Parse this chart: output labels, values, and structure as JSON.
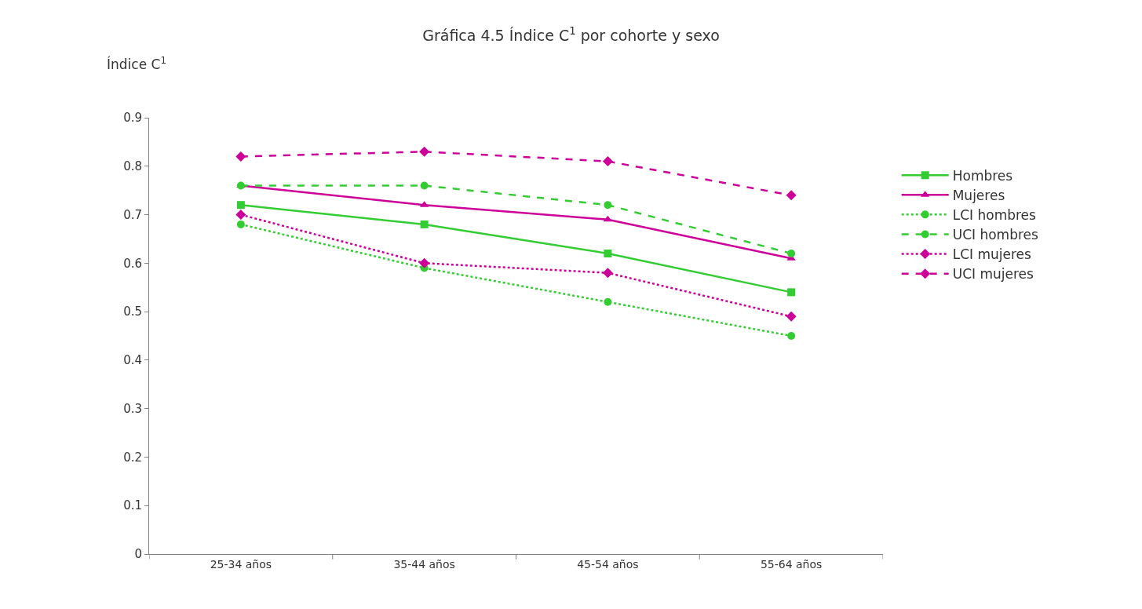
{
  "chart_data": {
    "type": "line",
    "title": "Gráfica 4.5 Índice C$^{1}$ por cohorte y sexo",
    "ylabel": "Índice C$^{1}$",
    "categories": [
      "25-34 años",
      "35-44 años",
      "45-54 años",
      "55-64 años"
    ],
    "ylim": [
      0,
      0.9
    ],
    "yticks": [
      0,
      0.1,
      0.2,
      0.3,
      0.4,
      0.5,
      0.6,
      0.7,
      0.8,
      0.9
    ],
    "legend": "right",
    "series": [
      {
        "name": "Hombres",
        "color": "#33cc33",
        "marker": "square",
        "line_style": "solid",
        "values": [
          0.72,
          0.68,
          0.62,
          0.54
        ]
      },
      {
        "name": "Mujeres",
        "color": "#cc0099",
        "marker": "triangle",
        "line_style": "solid",
        "values": [
          0.76,
          0.72,
          0.69,
          0.61
        ]
      },
      {
        "name": "LCI hombres",
        "color": "#33cc33",
        "marker": "circle",
        "line_style": "dotted",
        "values": [
          0.68,
          0.59,
          0.52,
          0.45
        ]
      },
      {
        "name": "UCI hombres",
        "color": "#33cc33",
        "marker": "circle",
        "line_style": "dashed",
        "values": [
          0.76,
          0.76,
          0.72,
          0.62
        ]
      },
      {
        "name": "LCI mujeres",
        "color": "#cc0099",
        "marker": "diamond",
        "line_style": "dotted",
        "values": [
          0.7,
          0.6,
          0.58,
          0.49
        ]
      },
      {
        "name": "UCI mujeres",
        "color": "#cc0099",
        "marker": "diamond",
        "line_style": "dashed",
        "values": [
          0.82,
          0.83,
          0.81,
          0.74
        ]
      }
    ]
  }
}
